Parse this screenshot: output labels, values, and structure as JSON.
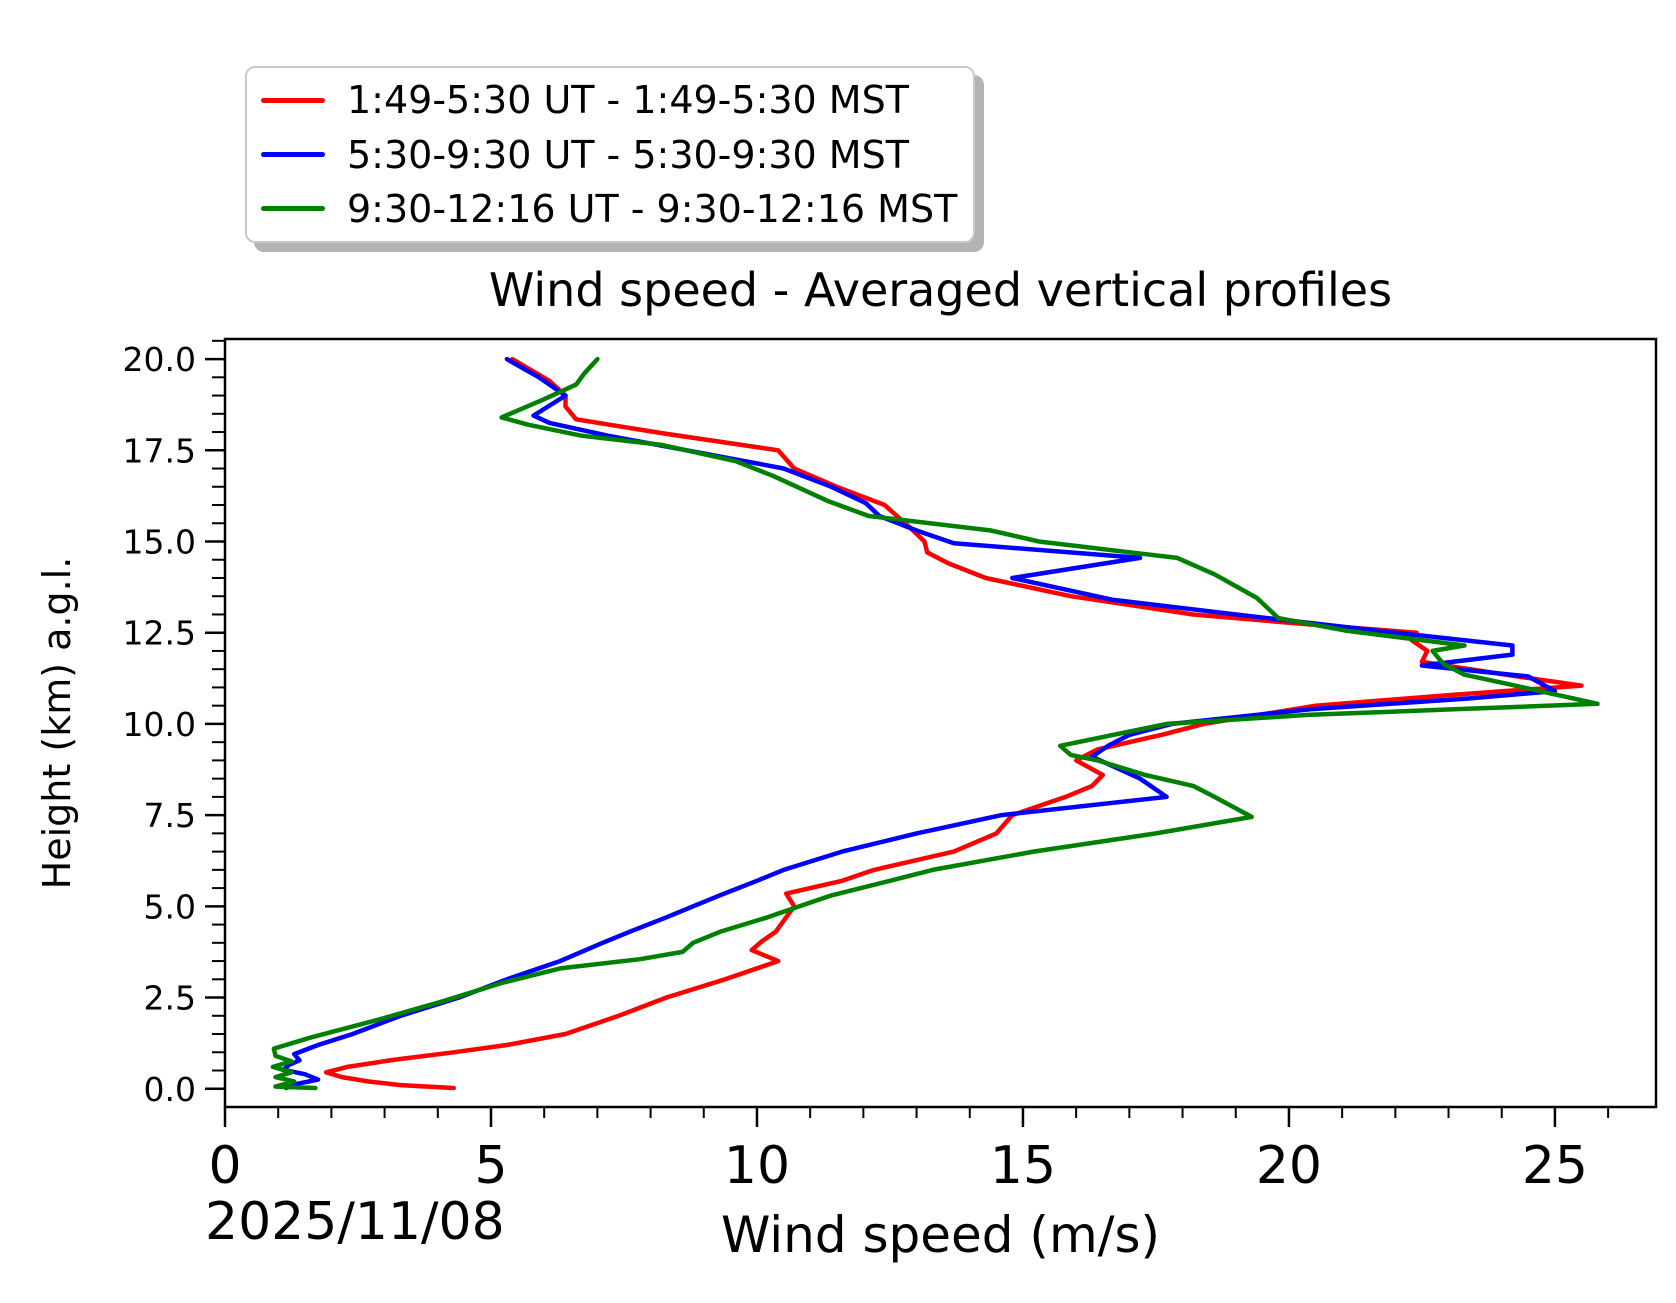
{
  "title": "Wind speed - Averaged vertical profiles",
  "legend": {
    "entries": [
      {
        "label": "1:49-5:30 UT - 1:49-5:30 MST",
        "color": "#ff0000"
      },
      {
        "label": "5:30-9:30 UT - 5:30-9:30 MST",
        "color": "#0000ff"
      },
      {
        "label": "9:30-12:16 UT - 9:30-12:16 MST",
        "color": "#008000"
      }
    ]
  },
  "chart_data": {
    "type": "line",
    "title": "Wind speed - Averaged vertical profiles",
    "xlabel": "Wind speed (m/s)",
    "ylabel": "Height (km) a.g.l.",
    "date_annotation": "2025/11/08",
    "xlim": [
      0,
      26.9
    ],
    "ylim": [
      -0.5,
      20.55
    ],
    "grid": false,
    "legend_position": "upper-left, outside above axes",
    "x_major_ticks": [
      0,
      5,
      10,
      15,
      20,
      25
    ],
    "x_tick_labels": [
      "0",
      "5",
      "10",
      "15",
      "20",
      "25"
    ],
    "x_minor_step": 1,
    "y_major_ticks": [
      0,
      2.5,
      5,
      7.5,
      10,
      12.5,
      15,
      17.5,
      20
    ],
    "y_tick_labels": [
      "0.0",
      "2.5",
      "5.0",
      "7.5",
      "10.0",
      "12.5",
      "15.0",
      "17.5",
      "20.0"
    ],
    "y_minor_step": 0.5,
    "series": [
      {
        "id": "red",
        "name": "1:49-5:30 UT - 1:49-5:30 MST",
        "color": "#ff0000",
        "points_format": "[wind_speed_m_s, height_km]",
        "points": [
          [
            4.3,
            0.02
          ],
          [
            3.3,
            0.1
          ],
          [
            2.7,
            0.2
          ],
          [
            2.2,
            0.32
          ],
          [
            1.9,
            0.45
          ],
          [
            2.3,
            0.6
          ],
          [
            3.2,
            0.8
          ],
          [
            4.3,
            1.0
          ],
          [
            5.3,
            1.2
          ],
          [
            6.4,
            1.5
          ],
          [
            7.4,
            2.0
          ],
          [
            8.3,
            2.5
          ],
          [
            9.4,
            3.0
          ],
          [
            10.4,
            3.5
          ],
          [
            9.9,
            3.8
          ],
          [
            10.1,
            4.05
          ],
          [
            10.35,
            4.3
          ],
          [
            10.55,
            4.7
          ],
          [
            10.7,
            5.0
          ],
          [
            10.55,
            5.35
          ],
          [
            11.6,
            5.7
          ],
          [
            12.2,
            6.0
          ],
          [
            13.7,
            6.5
          ],
          [
            14.5,
            7.0
          ],
          [
            14.8,
            7.5
          ],
          [
            15.8,
            8.0
          ],
          [
            16.3,
            8.3
          ],
          [
            16.5,
            8.6
          ],
          [
            16.0,
            9.0
          ],
          [
            16.4,
            9.3
          ],
          [
            17.6,
            9.7
          ],
          [
            18.4,
            10.0
          ],
          [
            20.5,
            10.5
          ],
          [
            23.1,
            10.8
          ],
          [
            25.5,
            11.05
          ],
          [
            24.3,
            11.3
          ],
          [
            22.5,
            11.7
          ],
          [
            22.6,
            12.0
          ],
          [
            22.3,
            12.3
          ],
          [
            22.4,
            12.5
          ],
          [
            20.6,
            12.7
          ],
          [
            18.2,
            13.0
          ],
          [
            15.9,
            13.5
          ],
          [
            14.3,
            14.0
          ],
          [
            13.6,
            14.4
          ],
          [
            13.2,
            14.7
          ],
          [
            13.15,
            15.0
          ],
          [
            12.9,
            15.35
          ],
          [
            12.4,
            16.0
          ],
          [
            11.5,
            16.5
          ],
          [
            10.7,
            17.0
          ],
          [
            10.4,
            17.5
          ],
          [
            8.3,
            17.95
          ],
          [
            6.6,
            18.35
          ],
          [
            6.4,
            18.7
          ],
          [
            6.4,
            19.0
          ],
          [
            6.1,
            19.4
          ],
          [
            5.4,
            20.0
          ]
        ]
      },
      {
        "id": "blue",
        "name": "5:30-9:30 UT - 5:30-9:30 MST",
        "color": "#0000ff",
        "points_format": "[wind_speed_m_s, height_km]",
        "points": [
          [
            1.15,
            0.02
          ],
          [
            1.3,
            0.12
          ],
          [
            1.75,
            0.25
          ],
          [
            1.5,
            0.4
          ],
          [
            1.1,
            0.52
          ],
          [
            1.2,
            0.65
          ],
          [
            1.4,
            0.78
          ],
          [
            1.3,
            0.95
          ],
          [
            1.75,
            1.2
          ],
          [
            2.4,
            1.5
          ],
          [
            3.3,
            2.0
          ],
          [
            4.4,
            2.5
          ],
          [
            5.3,
            3.0
          ],
          [
            6.3,
            3.5
          ],
          [
            7.1,
            4.0
          ],
          [
            7.6,
            4.3
          ],
          [
            8.3,
            4.7
          ],
          [
            8.8,
            5.0
          ],
          [
            9.3,
            5.3
          ],
          [
            10.0,
            5.7
          ],
          [
            10.5,
            6.0
          ],
          [
            11.6,
            6.5
          ],
          [
            13.0,
            7.0
          ],
          [
            14.6,
            7.5
          ],
          [
            17.7,
            8.0
          ],
          [
            17.2,
            8.5
          ],
          [
            16.3,
            9.1
          ],
          [
            16.6,
            9.4
          ],
          [
            17.0,
            9.7
          ],
          [
            17.8,
            10.0
          ],
          [
            20.4,
            10.4
          ],
          [
            23.4,
            10.7
          ],
          [
            25.0,
            10.9
          ],
          [
            24.5,
            11.3
          ],
          [
            22.5,
            11.6
          ],
          [
            24.2,
            11.9
          ],
          [
            24.2,
            12.15
          ],
          [
            22.0,
            12.5
          ],
          [
            19.3,
            12.95
          ],
          [
            16.7,
            13.4
          ],
          [
            14.8,
            14.0
          ],
          [
            17.2,
            14.55
          ],
          [
            13.7,
            14.95
          ],
          [
            13.0,
            15.3
          ],
          [
            12.3,
            15.7
          ],
          [
            12.05,
            16.05
          ],
          [
            11.4,
            16.5
          ],
          [
            10.5,
            17.0
          ],
          [
            9.6,
            17.25
          ],
          [
            7.2,
            17.9
          ],
          [
            6.1,
            18.25
          ],
          [
            5.8,
            18.45
          ],
          [
            6.4,
            19.0
          ],
          [
            5.9,
            19.5
          ],
          [
            5.3,
            20.0
          ]
        ]
      },
      {
        "id": "green",
        "name": "9:30-12:16 UT - 9:30-12:16 MST",
        "color": "#008000",
        "points_format": "[wind_speed_m_s, height_km]",
        "points": [
          [
            1.7,
            0.02
          ],
          [
            0.95,
            0.06
          ],
          [
            1.3,
            0.2
          ],
          [
            0.95,
            0.32
          ],
          [
            1.25,
            0.45
          ],
          [
            0.9,
            0.6
          ],
          [
            1.25,
            0.75
          ],
          [
            0.95,
            0.9
          ],
          [
            0.92,
            1.1
          ],
          [
            1.6,
            1.4
          ],
          [
            2.9,
            1.9
          ],
          [
            4.1,
            2.4
          ],
          [
            5.2,
            2.9
          ],
          [
            6.3,
            3.3
          ],
          [
            7.8,
            3.55
          ],
          [
            8.6,
            3.75
          ],
          [
            8.8,
            4.0
          ],
          [
            9.3,
            4.3
          ],
          [
            10.2,
            4.7
          ],
          [
            10.8,
            5.0
          ],
          [
            11.4,
            5.3
          ],
          [
            12.5,
            5.7
          ],
          [
            13.3,
            6.0
          ],
          [
            15.2,
            6.5
          ],
          [
            17.5,
            7.0
          ],
          [
            19.3,
            7.45
          ],
          [
            18.6,
            8.0
          ],
          [
            18.2,
            8.3
          ],
          [
            17.3,
            8.6
          ],
          [
            16.4,
            9.0
          ],
          [
            15.9,
            9.15
          ],
          [
            15.7,
            9.4
          ],
          [
            17.7,
            10.0
          ],
          [
            20.4,
            10.25
          ],
          [
            23.1,
            10.4
          ],
          [
            25.8,
            10.55
          ],
          [
            24.1,
            11.1
          ],
          [
            23.3,
            11.35
          ],
          [
            22.9,
            11.65
          ],
          [
            22.7,
            12.0
          ],
          [
            23.3,
            12.15
          ],
          [
            21.1,
            12.55
          ],
          [
            19.8,
            12.9
          ],
          [
            19.4,
            13.45
          ],
          [
            18.6,
            14.1
          ],
          [
            17.9,
            14.55
          ],
          [
            15.3,
            15.0
          ],
          [
            14.4,
            15.3
          ],
          [
            12.1,
            15.7
          ],
          [
            11.35,
            16.1
          ],
          [
            10.3,
            16.8
          ],
          [
            9.6,
            17.2
          ],
          [
            8.2,
            17.65
          ],
          [
            6.7,
            17.9
          ],
          [
            5.7,
            18.2
          ],
          [
            5.2,
            18.4
          ],
          [
            6.0,
            18.9
          ],
          [
            6.6,
            19.3
          ],
          [
            6.75,
            19.6
          ],
          [
            7.0,
            20.0
          ]
        ]
      }
    ]
  }
}
